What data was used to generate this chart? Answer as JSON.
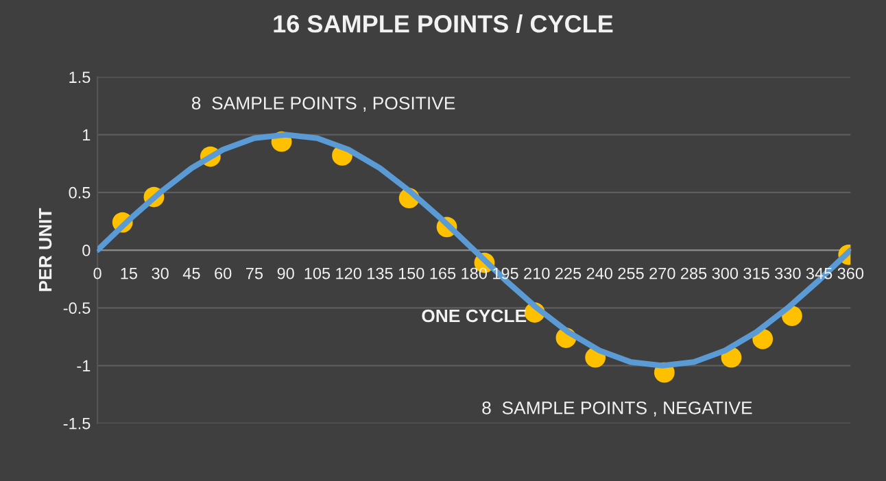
{
  "chart_data": {
    "type": "line",
    "title": "16 SAMPLE POINTS / CYCLE",
    "xlabel": "ONE CYCLE",
    "ylabel": "PER UNIT",
    "annotations": [
      "8  SAMPLE POINTS , POSITIVE",
      "8  SAMPLE POINTS , NEGATIVE"
    ],
    "xlim": [
      0,
      360
    ],
    "xticks": [
      0,
      15,
      30,
      45,
      60,
      75,
      90,
      105,
      120,
      135,
      150,
      165,
      180,
      195,
      210,
      225,
      240,
      255,
      270,
      285,
      300,
      315,
      330,
      345,
      360
    ],
    "ylim": [
      -1.5,
      1.5
    ],
    "yticks": [
      -1.5,
      -1,
      -0.5,
      0,
      0.5,
      1,
      1.5
    ],
    "grid": "y",
    "legend": false,
    "series": [
      {
        "type": "line",
        "color": "#5b9bd5",
        "marker": "none",
        "line_style": "solid",
        "x": [
          0,
          15,
          30,
          45,
          60,
          75,
          90,
          105,
          120,
          135,
          150,
          165,
          180,
          195,
          210,
          225,
          240,
          255,
          270,
          285,
          300,
          315,
          330,
          345,
          360
        ],
        "values": [
          0,
          0.26,
          0.5,
          0.71,
          0.87,
          0.97,
          1,
          0.97,
          0.87,
          0.71,
          0.5,
          0.26,
          0,
          -0.26,
          -0.5,
          -0.71,
          -0.87,
          -0.97,
          -1,
          -0.97,
          -0.87,
          -0.71,
          -0.5,
          -0.26,
          0
        ]
      },
      {
        "type": "scatter",
        "color": "#ffc000",
        "marker": "circle",
        "x": [
          12,
          27,
          54,
          88,
          117,
          149,
          167,
          185,
          209,
          224,
          238,
          271,
          303,
          318,
          332,
          359
        ],
        "values": [
          0.24,
          0.46,
          0.81,
          0.94,
          0.82,
          0.45,
          0.2,
          -0.11,
          -0.54,
          -0.76,
          -0.93,
          -1.06,
          -0.93,
          -0.77,
          -0.57,
          -0.04
        ]
      }
    ]
  }
}
